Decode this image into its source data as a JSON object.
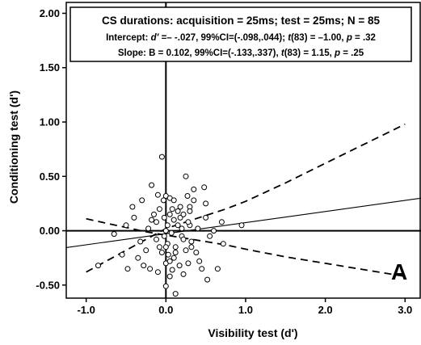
{
  "chart_data": {
    "type": "scatter",
    "title": "",
    "xlabel": "Visibility test (d')",
    "ylabel": "Conditioning test (d')",
    "xlim": [
      -1.25,
      3.2
    ],
    "ylim": [
      -0.62,
      2.1
    ],
    "xticks": [
      -1.0,
      0.0,
      1.0,
      2.0,
      3.0
    ],
    "xtick_labels": [
      "-1.0",
      "0.0",
      "1.0",
      "2.0",
      "3.0"
    ],
    "yticks": [
      -0.5,
      0.0,
      0.5,
      1.0,
      1.5,
      2.0
    ],
    "ytick_labels": [
      "-0.50",
      "0.00",
      "0.50",
      "1.00",
      "1.50",
      "2.00"
    ],
    "grid": false,
    "panel_label": "A",
    "annotation": {
      "line1": "CS durations:  acquisition = 25ms; test = 25ms; N = 85",
      "line2_parts": [
        "Intercept:  ",
        "d'",
        " =– -.027, 99%CI=(-.098,.044); ",
        "t",
        "(83) = –1.00, ",
        "p",
        " = .32"
      ],
      "line3_parts": [
        "Slope:  B = 0.102, 99%CI=(-.133,.337), ",
        "t",
        "(83) = 1.15, ",
        "p",
        " = .25"
      ]
    },
    "regression_line": {
      "x": [
        -1.25,
        3.2
      ],
      "y": [
        -0.155,
        0.299
      ]
    },
    "ci_upper": {
      "x": [
        -1.0,
        -0.75,
        -0.5,
        -0.25,
        0.0,
        0.25,
        0.5,
        0.75,
        1.0,
        1.5,
        2.0,
        2.5,
        3.0
      ],
      "y": [
        -0.38,
        -0.28,
        -0.18,
        -0.08,
        0.02,
        0.08,
        0.14,
        0.2,
        0.27,
        0.44,
        0.62,
        0.8,
        0.98
      ]
    },
    "ci_lower": {
      "x": [
        -1.0,
        -0.75,
        -0.5,
        -0.25,
        0.0,
        0.25,
        0.5,
        0.75,
        1.0,
        1.5,
        2.0,
        2.5,
        3.0
      ],
      "y": [
        0.11,
        0.07,
        0.03,
        -0.01,
        -0.04,
        -0.07,
        -0.1,
        -0.13,
        -0.17,
        -0.24,
        -0.3,
        -0.36,
        -0.42
      ]
    },
    "points": {
      "x": [
        -0.85,
        -0.65,
        -0.55,
        -0.5,
        -0.48,
        -0.42,
        -0.35,
        -0.3,
        -0.28,
        -0.25,
        -0.22,
        -0.2,
        -0.18,
        -0.15,
        -0.12,
        -0.1,
        -0.1,
        -0.08,
        -0.05,
        -0.05,
        -0.03,
        -0.02,
        0.0,
        0.0,
        0.0,
        0.0,
        0.02,
        0.02,
        0.03,
        0.05,
        0.05,
        0.05,
        0.07,
        0.08,
        0.1,
        0.1,
        0.12,
        0.12,
        0.15,
        0.15,
        0.17,
        0.18,
        0.2,
        0.2,
        0.22,
        0.22,
        0.25,
        0.25,
        0.27,
        0.28,
        0.3,
        0.3,
        0.32,
        0.35,
        0.35,
        0.38,
        0.4,
        0.42,
        0.45,
        0.48,
        0.5,
        0.5,
        0.52,
        0.55,
        0.6,
        0.65,
        0.7,
        0.72,
        0.95,
        -0.4,
        -0.32,
        -0.18,
        -0.08,
        0.08,
        0.12,
        0.18,
        0.22,
        0.28,
        0.32,
        0.05,
        -0.02,
        0.1,
        0.3,
        -0.12,
        0.0
      ],
      "y": [
        -0.32,
        -0.03,
        -0.22,
        0.05,
        -0.35,
        0.22,
        -0.25,
        0.28,
        -0.32,
        -0.18,
        0.02,
        -0.35,
        0.1,
        0.15,
        -0.08,
        0.33,
        -0.38,
        0.2,
        0.68,
        -0.2,
        0.28,
        -0.05,
        0.32,
        0.0,
        -0.3,
        -0.51,
        0.05,
        -0.12,
        -0.22,
        0.3,
        0.15,
        -0.28,
        -0.02,
        -0.36,
        0.1,
        0.28,
        -0.15,
        -0.58,
        0.18,
        0.05,
        -0.32,
        0.12,
        0.02,
        -0.05,
        -0.4,
        0.15,
        0.5,
        -0.18,
        0.32,
        -0.3,
        0.05,
        0.22,
        -0.1,
        0.28,
        0.38,
        -0.2,
        0.02,
        -0.28,
        -0.35,
        0.4,
        0.25,
        0.12,
        -0.45,
        -0.05,
        0.0,
        -0.35,
        0.08,
        -0.12,
        0.05,
        0.12,
        -0.1,
        0.42,
        -0.15,
        0.2,
        -0.2,
        0.22,
        -0.08,
        0.08,
        -0.15,
        -0.42,
        0.12,
        -0.25,
        0.18,
        0.08,
        -0.15
      ]
    }
  }
}
